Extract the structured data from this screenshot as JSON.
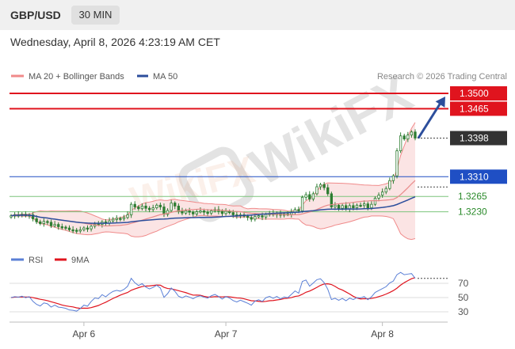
{
  "header": {
    "symbol": "GBP/USD",
    "interval": "30 MIN",
    "datetime": "Wednesday, April 8, 2026 4:23:19 AM CET"
  },
  "colors": {
    "resistance": "#e0141e",
    "pivot": "#1f4fc4",
    "support": "#2a8a2a",
    "bollinger": "#f08a8a",
    "ma50": "#2c4e9c",
    "rsi": "#5a7fd6",
    "rsi_ma": "#e0141e",
    "candle": "#2e7d32",
    "current_price_bg": "#333333"
  },
  "legend": {
    "bollinger_label": "MA 20 + Bollinger Bands",
    "ma50_label": "MA 50",
    "source": "Research © 2026 Trading Central"
  },
  "watermark": "WikiFX",
  "chart_data": {
    "type": "candlestick",
    "price_levels": [
      {
        "label": "1.3500",
        "value": 1.35,
        "kind": "resistance"
      },
      {
        "label": "1.3465",
        "value": 1.3465,
        "kind": "resistance"
      },
      {
        "label": "1.3398",
        "value": 1.3398,
        "kind": "current"
      },
      {
        "label": "1.3310",
        "value": 1.331,
        "kind": "pivot"
      },
      {
        "label": "1.3265",
        "value": 1.3265,
        "kind": "support"
      },
      {
        "label": "1.3230",
        "value": 1.323,
        "kind": "support"
      }
    ],
    "x_ticks": [
      "Apr 6",
      "Apr 7",
      "Apr 8"
    ],
    "price_series": [
      1.3221,
      1.3223,
      1.3222,
      1.3224,
      1.3221,
      1.3223,
      1.3214,
      1.3207,
      1.3203,
      1.3208,
      1.3206,
      1.3198,
      1.3201,
      1.3196,
      1.3195,
      1.3193,
      1.3189,
      1.3188,
      1.3186,
      1.3189,
      1.3193,
      1.3191,
      1.3197,
      1.3202,
      1.3201,
      1.3207,
      1.3204,
      1.3209,
      1.3213,
      1.3215,
      1.3214,
      1.3217,
      1.3223,
      1.3247,
      1.3241,
      1.3237,
      1.3243,
      1.3238,
      1.3235,
      1.3239,
      1.3245,
      1.3241,
      1.3224,
      1.3233,
      1.325,
      1.3243,
      1.3231,
      1.3227,
      1.3232,
      1.3229,
      1.3225,
      1.323,
      1.3232,
      1.3229,
      1.3227,
      1.3232,
      1.3235,
      1.3231,
      1.3226,
      1.3231,
      1.3228,
      1.3223,
      1.322,
      1.3223,
      1.322,
      1.3217,
      1.3213,
      1.3219,
      1.3221,
      1.3218,
      1.3224,
      1.3226,
      1.3223,
      1.3226,
      1.3222,
      1.3225,
      1.3224,
      1.3229,
      1.3235,
      1.3232,
      1.3263,
      1.3269,
      1.3259,
      1.3271,
      1.3287,
      1.3292,
      1.3285,
      1.3271,
      1.3241,
      1.3245,
      1.3238,
      1.3244,
      1.3236,
      1.3244,
      1.3239,
      1.3245,
      1.3244,
      1.3248,
      1.3239,
      1.3247,
      1.3261,
      1.3268,
      1.3275,
      1.3283,
      1.3301,
      1.3312,
      1.3369,
      1.3403,
      1.3396,
      1.3405,
      1.3412,
      1.3398
    ],
    "rsi_levels": [
      30,
      50,
      70
    ],
    "rsi_legend": [
      "RSI",
      "9MA"
    ],
    "rsi_last": 77,
    "projection": {
      "from": 1.3398,
      "to": 1.35
    }
  }
}
